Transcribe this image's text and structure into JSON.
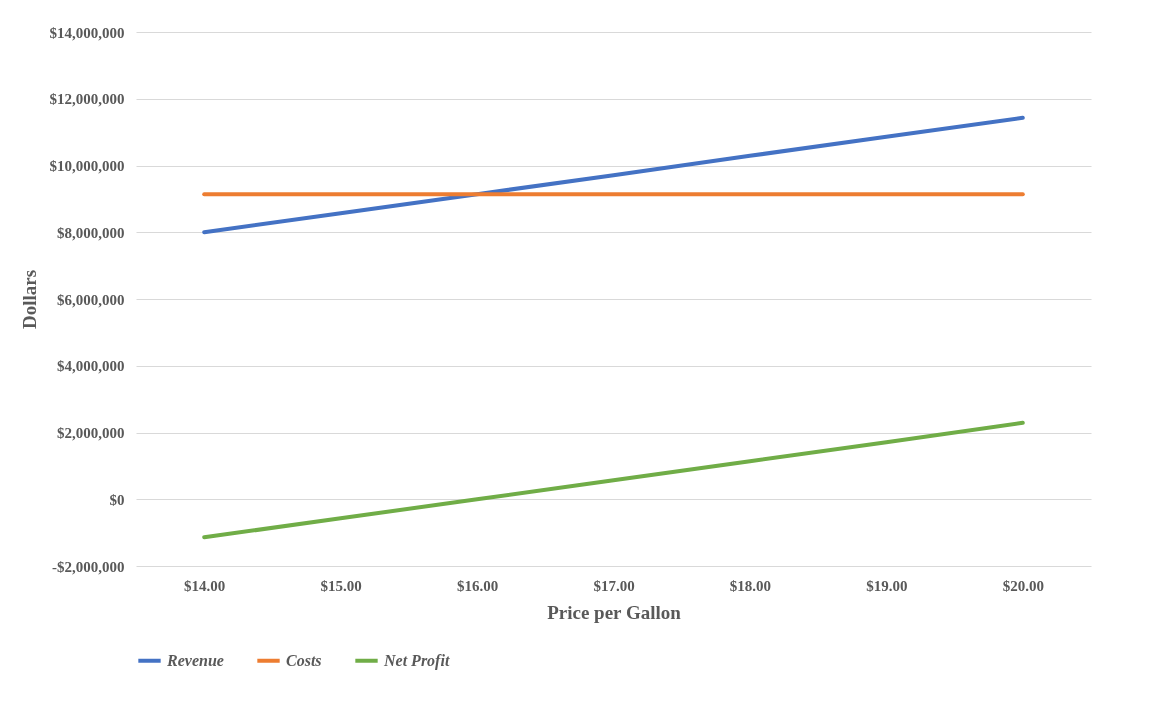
{
  "chart_data": {
    "type": "line",
    "xlabel": "Price per Gallon",
    "ylabel": "Dollars",
    "categories": [
      "$14.00",
      "$15.00",
      "$16.00",
      "$17.00",
      "$18.00",
      "$19.00",
      "$20.00"
    ],
    "series": [
      {
        "name": "Revenue",
        "color": "#4472c4",
        "values": [
          8000000,
          8570000,
          9140000,
          9710000,
          10290000,
          10860000,
          11430000
        ]
      },
      {
        "name": "Costs",
        "color": "#ed7d31",
        "values": [
          9140000,
          9140000,
          9140000,
          9140000,
          9140000,
          9140000,
          9140000
        ]
      },
      {
        "name": "Net Profit",
        "color": "#70ad47",
        "values": [
          -1140000,
          -570000,
          0,
          570000,
          1140000,
          1710000,
          2290000
        ]
      }
    ],
    "ylim": [
      -2000000,
      14000000
    ],
    "yticks": [
      {
        "value": -2000000,
        "label": "-$2,000,000"
      },
      {
        "value": 0,
        "label": "$0"
      },
      {
        "value": 2000000,
        "label": "$2,000,000"
      },
      {
        "value": 4000000,
        "label": "$4,000,000"
      },
      {
        "value": 6000000,
        "label": "$6,000,000"
      },
      {
        "value": 8000000,
        "label": "$8,000,000"
      },
      {
        "value": 10000000,
        "label": "$10,000,000"
      },
      {
        "value": 12000000,
        "label": "$12,000,000"
      },
      {
        "value": 14000000,
        "label": "$14,000,000"
      }
    ],
    "grid": "y",
    "legend": "bottom",
    "marker": "none",
    "line_style": "solid"
  }
}
